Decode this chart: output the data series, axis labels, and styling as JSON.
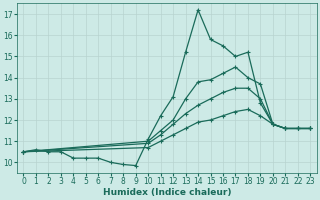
{
  "bg_color": "#cdeae6",
  "grid_color": "#b8d4d0",
  "line_color": "#1a6b5a",
  "xlabel": "Humidex (Indice chaleur)",
  "xlim": [
    -0.5,
    23.5
  ],
  "ylim": [
    9.5,
    17.5
  ],
  "xticks": [
    0,
    1,
    2,
    3,
    4,
    5,
    6,
    7,
    8,
    9,
    10,
    11,
    12,
    13,
    14,
    15,
    16,
    17,
    18,
    19,
    20,
    21,
    22,
    23
  ],
  "yticks": [
    10,
    11,
    12,
    13,
    14,
    15,
    16,
    17
  ],
  "line1_x": [
    0,
    1,
    2,
    3,
    4,
    5,
    6,
    7,
    8,
    9,
    10,
    11,
    12,
    13,
    14,
    15,
    16,
    17,
    18,
    19,
    20,
    21,
    22,
    23
  ],
  "line1_y": [
    10.5,
    10.6,
    10.5,
    10.5,
    10.2,
    10.2,
    10.2,
    10.0,
    9.9,
    9.85,
    11.1,
    12.2,
    13.1,
    15.2,
    17.2,
    15.8,
    15.5,
    15.0,
    15.2,
    12.8,
    11.8,
    11.6,
    11.6,
    11.6
  ],
  "line2_x": [
    0,
    10,
    11,
    12,
    13,
    14,
    15,
    16,
    17,
    18,
    19,
    20,
    21,
    22,
    23
  ],
  "line2_y": [
    10.5,
    11.0,
    11.5,
    12.0,
    13.0,
    13.8,
    13.9,
    14.2,
    14.5,
    14.0,
    13.7,
    11.8,
    11.6,
    11.6,
    11.6
  ],
  "line3_x": [
    0,
    10,
    11,
    12,
    13,
    14,
    15,
    16,
    17,
    18,
    19,
    20,
    21,
    22,
    23
  ],
  "line3_y": [
    10.5,
    10.9,
    11.3,
    11.8,
    12.3,
    12.7,
    13.0,
    13.3,
    13.5,
    13.5,
    13.0,
    11.8,
    11.6,
    11.6,
    11.6
  ],
  "line4_x": [
    0,
    10,
    11,
    12,
    13,
    14,
    15,
    16,
    17,
    18,
    19,
    20,
    21,
    22,
    23
  ],
  "line4_y": [
    10.5,
    10.7,
    11.0,
    11.3,
    11.6,
    11.9,
    12.0,
    12.2,
    12.4,
    12.5,
    12.2,
    11.8,
    11.6,
    11.6,
    11.6
  ]
}
